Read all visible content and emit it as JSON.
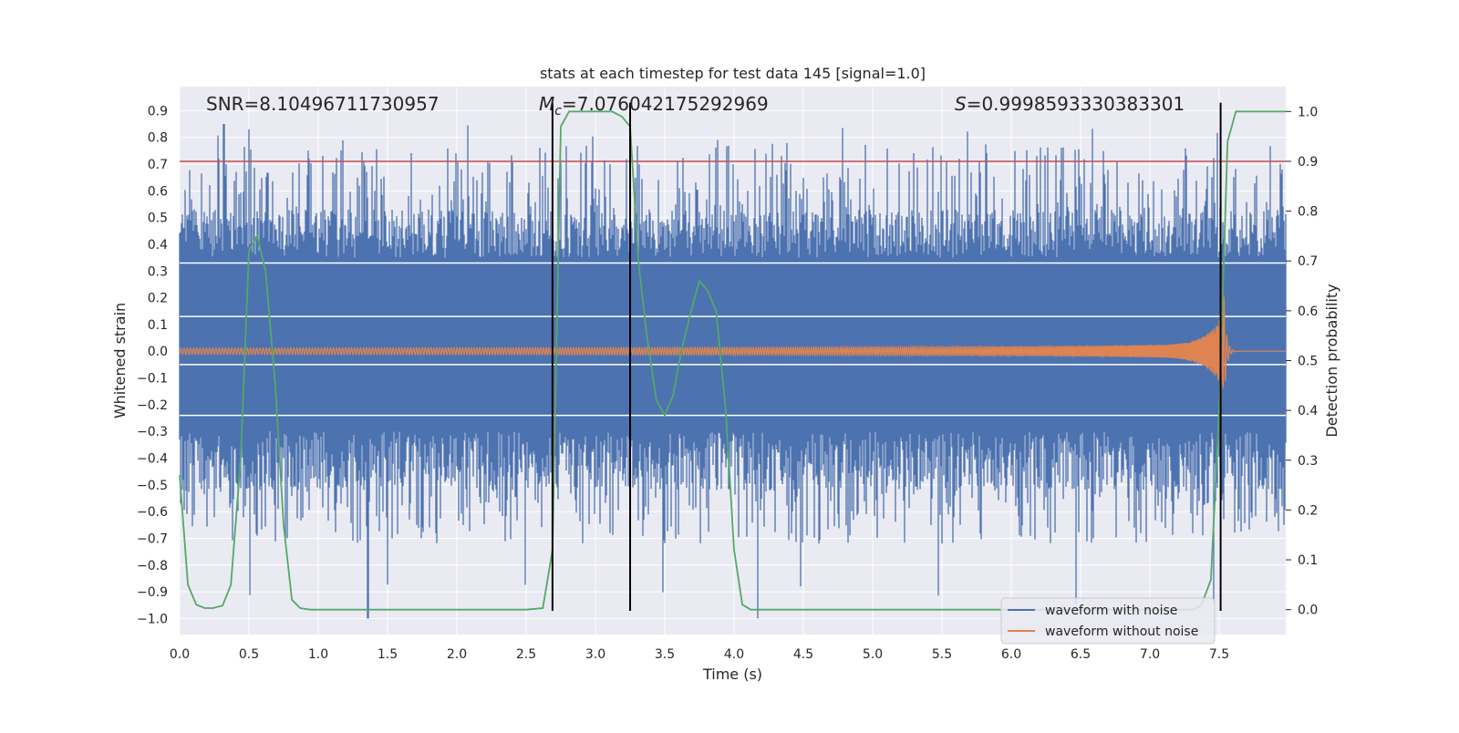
{
  "chart_data": {
    "type": "line",
    "title": "stats at each timestep for test data 145 [signal=1.0]",
    "xlabel": "Time (s)",
    "ylabel": "Whitened strain",
    "y2label": "Detection probability",
    "xlim": [
      0.0,
      7.98
    ],
    "ylim": [
      -1.06,
      0.99
    ],
    "y2lim": [
      -0.05,
      1.05
    ],
    "grid": true,
    "background": "#eaeaf2",
    "x_ticks": [
      "0.0",
      "0.5",
      "1.0",
      "1.5",
      "2.0",
      "2.5",
      "3.0",
      "3.5",
      "4.0",
      "4.5",
      "5.0",
      "5.5",
      "6.0",
      "6.5",
      "7.0",
      "7.5"
    ],
    "y_ticks": [
      "0.9",
      "0.8",
      "0.7",
      "0.6",
      "0.5",
      "0.4",
      "0.3",
      "0.2",
      "0.1",
      "0.0",
      "−0.1",
      "−0.2",
      "−0.3",
      "−0.4",
      "−0.5",
      "−0.6",
      "−0.7",
      "−0.8",
      "−0.9",
      "−1.0"
    ],
    "y2_ticks": [
      "1.0",
      "0.9",
      "0.8",
      "0.7",
      "0.6",
      "0.5",
      "0.4",
      "0.3",
      "0.2",
      "0.1",
      "0.0"
    ],
    "annotations": {
      "snr": "SNR=8.10496711730957",
      "mc_symbol": "M",
      "mc_subscript": "c",
      "mc_value": "=7.076042175292969",
      "s_symbol": "S",
      "s_value": "=0.9998593330383301"
    },
    "threshold_line": {
      "y2": 0.9,
      "color": "#c44e52"
    },
    "vertical_markers": [
      2.69,
      3.25,
      7.51
    ],
    "series": [
      {
        "name": "waveform with noise",
        "color": "#4c72b0",
        "style": "noise",
        "envelope_p90": 0.33,
        "envelope_p90_neg": -0.24,
        "max": 0.85,
        "min": -1.0
      },
      {
        "name": "waveform without noise",
        "color": "#dd8452",
        "style": "chirp",
        "merger_time": 7.53,
        "peak_amplitude": 0.27
      },
      {
        "name": "detection probability",
        "color": "#55a868",
        "axis": "right",
        "x": [
          0.0,
          0.06,
          0.12,
          0.18,
          0.24,
          0.31,
          0.37,
          0.44,
          0.5,
          0.56,
          0.62,
          0.69,
          0.75,
          0.81,
          0.87,
          0.94,
          1.0,
          1.5,
          2.0,
          2.5,
          2.62,
          2.69,
          2.75,
          2.81,
          2.87,
          2.94,
          3.0,
          3.06,
          3.12,
          3.19,
          3.25,
          3.31,
          3.37,
          3.44,
          3.5,
          3.56,
          3.62,
          3.69,
          3.75,
          3.81,
          3.87,
          3.94,
          4.0,
          4.06,
          4.12,
          4.5,
          5.0,
          5.5,
          6.0,
          6.5,
          7.0,
          7.31,
          7.37,
          7.44,
          7.5,
          7.56,
          7.62,
          7.69,
          7.75,
          7.98
        ],
        "y": [
          0.27,
          0.05,
          0.01,
          0.003,
          0.003,
          0.008,
          0.05,
          0.3,
          0.72,
          0.75,
          0.68,
          0.45,
          0.17,
          0.02,
          0.003,
          0.0,
          0.0,
          0.0,
          0.0,
          0.0,
          0.003,
          0.12,
          0.97,
          1.0,
          1.0,
          1.0,
          1.0,
          1.0,
          1.0,
          0.99,
          0.97,
          0.7,
          0.55,
          0.42,
          0.39,
          0.43,
          0.52,
          0.6,
          0.66,
          0.64,
          0.6,
          0.4,
          0.12,
          0.01,
          0.0,
          0.0,
          0.0,
          0.0,
          0.0,
          0.0,
          0.0,
          0.0,
          0.008,
          0.06,
          0.4,
          0.94,
          1.0,
          1.0,
          1.0,
          1.0
        ]
      }
    ],
    "legend": {
      "placement": "lower-right",
      "entries": [
        "waveform with noise",
        "waveform without noise"
      ]
    }
  }
}
